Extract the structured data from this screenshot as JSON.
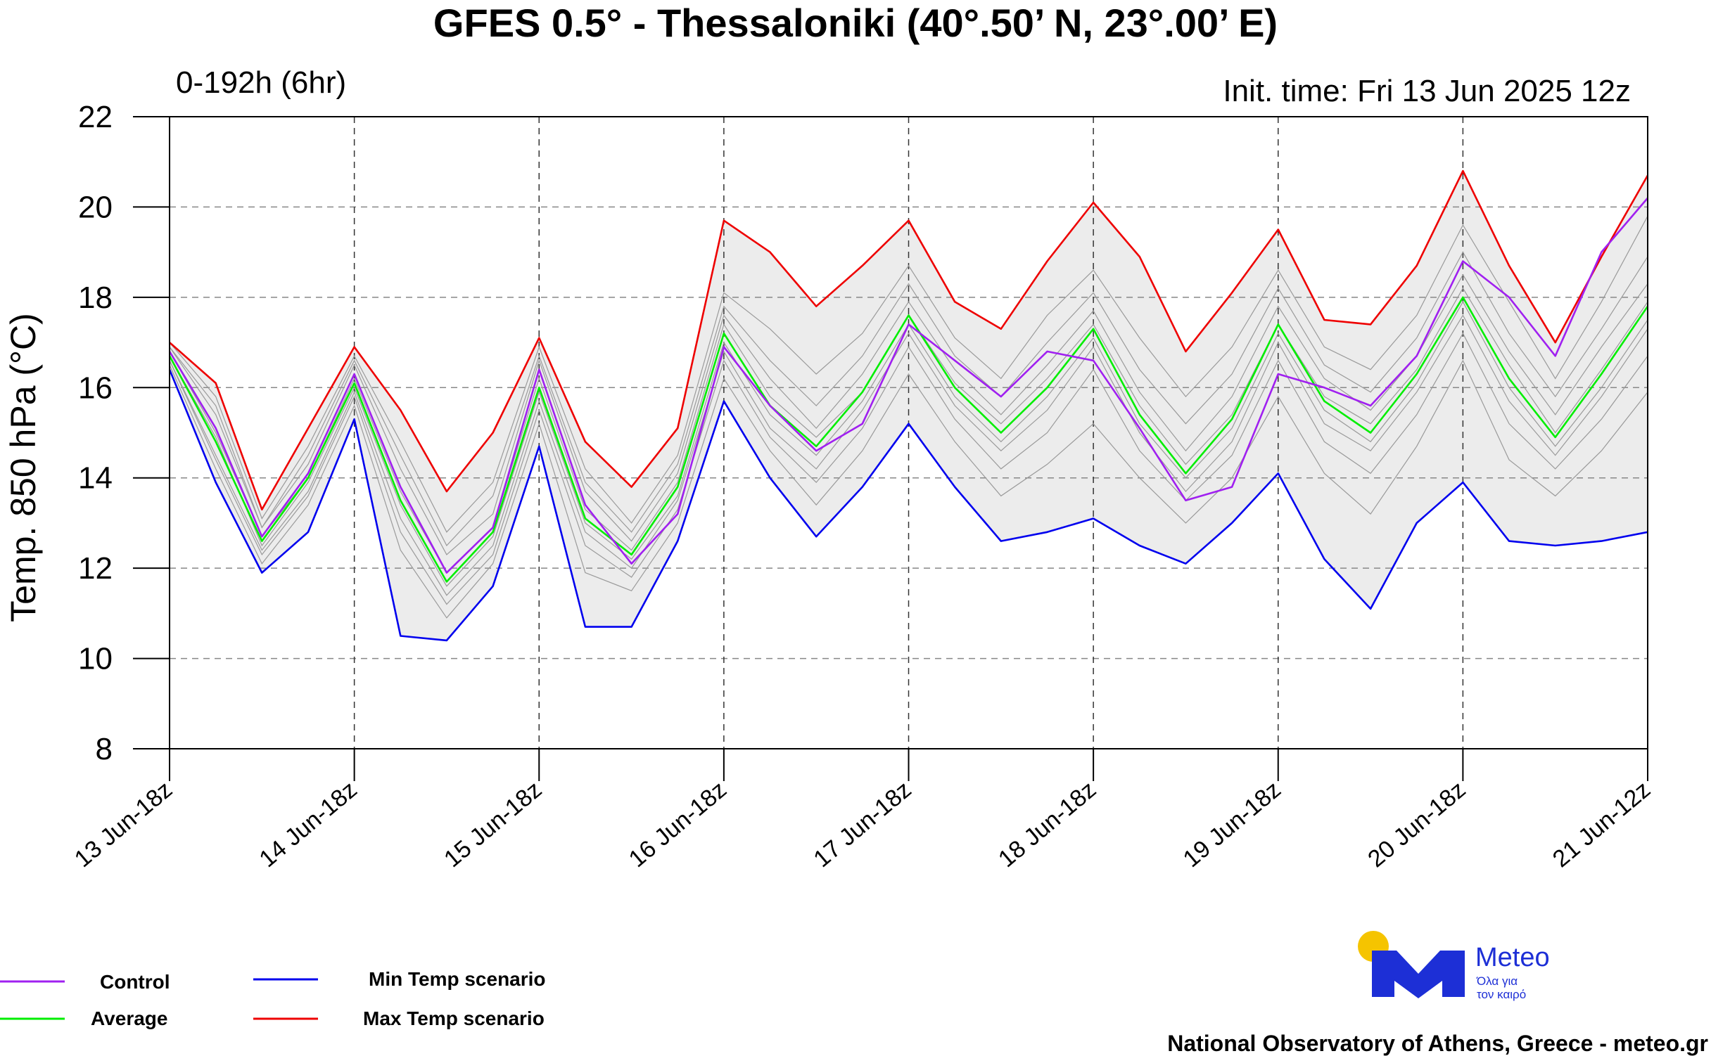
{
  "chart_data": {
    "type": "line",
    "title": "GFES 0.5° - Thessaloniki (40°.50’ N, 23°.00’ E)",
    "subtitle_left": "0-192h (6hr)",
    "subtitle_right": "Init. time: Fri 13 Jun 2025 12z",
    "ylabel": "Temp. 850 hPa (°C)",
    "ylim": [
      8,
      22
    ],
    "yticks": [
      8,
      10,
      12,
      14,
      16,
      18,
      20,
      22
    ],
    "grid": true,
    "x": [
      0,
      1,
      2,
      3,
      4,
      5,
      6,
      7,
      8,
      9,
      10,
      11,
      12,
      13,
      14,
      15,
      16,
      17,
      18,
      19,
      20,
      21,
      22,
      23,
      24,
      25,
      26,
      27,
      28,
      29,
      30,
      31,
      32
    ],
    "x_tick_positions": [
      0,
      4,
      8,
      12,
      16,
      20,
      24,
      28,
      32
    ],
    "x_tick_labels": [
      "13 Jun-18z",
      "14 Jun-18z",
      "15 Jun-18z",
      "16 Jun-18z",
      "17 Jun-18z",
      "18 Jun-18z",
      "19 Jun-18z",
      "20 Jun-18z",
      "21 Jun-12z"
    ],
    "series": [
      {
        "name": "Control",
        "color": "#a020f0",
        "values": [
          16.8,
          15.1,
          12.7,
          14.1,
          16.3,
          13.8,
          11.9,
          12.9,
          16.4,
          13.4,
          12.1,
          13.2,
          16.9,
          15.6,
          14.6,
          15.2,
          17.4,
          16.6,
          15.8,
          16.8,
          16.6,
          15.1,
          13.5,
          13.8,
          16.3,
          16.0,
          15.6,
          16.7,
          18.8,
          18.0,
          16.7,
          19.0,
          20.2
        ]
      },
      {
        "name": "Average",
        "color": "#00ee00",
        "values": [
          16.7,
          14.8,
          12.6,
          14.0,
          16.1,
          13.5,
          11.7,
          12.8,
          16.0,
          13.1,
          12.3,
          13.8,
          17.2,
          15.6,
          14.7,
          15.9,
          17.6,
          16.0,
          15.0,
          16.0,
          17.3,
          15.4,
          14.1,
          15.3,
          17.4,
          15.7,
          15.0,
          16.3,
          18.0,
          16.2,
          14.9,
          16.3,
          17.8
        ]
      },
      {
        "name": "Min Temp scenario",
        "color": "#0000ee",
        "values": [
          16.4,
          13.9,
          11.9,
          12.8,
          15.3,
          10.5,
          10.4,
          11.6,
          14.7,
          10.7,
          10.7,
          12.6,
          15.7,
          14.0,
          12.7,
          13.8,
          15.2,
          13.8,
          12.6,
          12.8,
          13.1,
          12.5,
          12.1,
          13.0,
          14.1,
          12.2,
          11.1,
          13.0,
          13.9,
          12.6,
          12.5,
          12.6,
          12.8
        ]
      },
      {
        "name": "Max Temp scenario",
        "color": "#ee0000",
        "values": [
          17.0,
          16.1,
          13.3,
          15.1,
          16.9,
          15.5,
          13.7,
          15.0,
          17.1,
          14.8,
          13.8,
          15.1,
          19.7,
          19.0,
          17.8,
          18.7,
          19.7,
          17.9,
          17.3,
          18.8,
          20.1,
          18.9,
          16.8,
          18.1,
          19.5,
          17.5,
          17.4,
          18.7,
          20.8,
          18.7,
          17.0,
          18.9,
          20.7
        ]
      }
    ],
    "ensemble_members": [
      [
        16.9,
        15.4,
        12.9,
        14.3,
        16.5,
        14.2,
        12.3,
        13.2,
        16.6,
        13.7,
        12.6,
        14.1,
        17.6,
        16.2,
        15.1,
        16.3,
        17.9,
        16.4,
        15.4,
        16.5,
        17.7,
        15.9,
        14.6,
        15.8,
        17.8,
        16.2,
        15.5,
        16.7,
        18.5,
        16.8,
        15.4,
        16.9,
        18.3
      ],
      [
        16.6,
        14.5,
        12.4,
        13.7,
        15.9,
        13.1,
        11.4,
        12.5,
        15.7,
        12.8,
        12.0,
        13.5,
        16.8,
        15.1,
        14.2,
        15.5,
        17.2,
        15.6,
        14.6,
        15.5,
        16.9,
        15.0,
        13.7,
        14.8,
        17.0,
        15.2,
        14.6,
        15.9,
        17.6,
        15.7,
        14.5,
        15.8,
        17.3
      ],
      [
        17.0,
        15.8,
        13.1,
        14.7,
        16.7,
        14.8,
        12.8,
        13.9,
        16.9,
        14.2,
        13.0,
        14.5,
        18.1,
        17.3,
        16.3,
        17.2,
        18.7,
        17.1,
        16.2,
        17.6,
        18.6,
        17.1,
        15.8,
        16.9,
        18.6,
        16.9,
        16.4,
        17.6,
        19.6,
        17.9,
        16.2,
        17.9,
        19.8
      ],
      [
        16.5,
        14.2,
        12.1,
        13.4,
        15.6,
        12.4,
        10.9,
        12.1,
        15.2,
        11.9,
        11.5,
        13.0,
        16.2,
        14.6,
        13.4,
        14.6,
        16.3,
        14.8,
        13.6,
        14.3,
        15.2,
        14.0,
        13.0,
        14.0,
        15.8,
        14.1,
        13.2,
        14.7,
        16.6,
        14.4,
        13.6,
        14.6,
        15.9
      ],
      [
        16.8,
        15.0,
        12.7,
        14.0,
        16.2,
        13.7,
        11.9,
        12.9,
        16.2,
        13.3,
        12.4,
        13.9,
        17.4,
        15.8,
        14.9,
        15.9,
        17.6,
        16.1,
        15.2,
        16.2,
        17.4,
        15.6,
        14.3,
        15.4,
        17.4,
        15.8,
        15.2,
        16.4,
        18.2,
        16.5,
        15.0,
        16.4,
        17.9
      ],
      [
        16.7,
        14.9,
        12.5,
        13.9,
        16.0,
        13.4,
        11.6,
        12.7,
        15.9,
        13.0,
        12.2,
        13.6,
        17.0,
        15.4,
        14.5,
        15.7,
        17.4,
        15.8,
        14.8,
        15.8,
        17.1,
        15.2,
        14.0,
        15.1,
        17.2,
        15.5,
        14.8,
        16.1,
        17.9,
        16.0,
        14.7,
        16.0,
        17.5
      ],
      [
        16.9,
        15.6,
        12.9,
        14.5,
        16.6,
        14.5,
        12.5,
        13.6,
        16.7,
        13.9,
        12.8,
        14.3,
        17.8,
        16.6,
        15.6,
        16.7,
        18.3,
        16.7,
        15.8,
        17.0,
        18.1,
        16.4,
        15.2,
        16.3,
        18.2,
        16.5,
        15.9,
        17.1,
        19.0,
        17.2,
        15.8,
        17.3,
        18.9
      ],
      [
        16.6,
        14.4,
        12.3,
        13.6,
        15.8,
        12.8,
        11.2,
        12.3,
        15.5,
        12.5,
        11.8,
        13.3,
        16.6,
        14.9,
        13.9,
        15.1,
        16.9,
        15.3,
        14.2,
        15.0,
        16.4,
        14.6,
        13.5,
        14.5,
        16.6,
        14.8,
        14.1,
        15.4,
        17.2,
        15.2,
        14.2,
        15.3,
        16.7
      ]
    ]
  },
  "legend": {
    "control": "Control",
    "average": "Average",
    "min": "Min Temp scenario",
    "max": "Max Temp scenario"
  },
  "logo": {
    "name": "Meteo",
    "tagline_1": "Όλα για",
    "tagline_2": "τον καιρό",
    "brand_color": "#1d2fd6",
    "sun_color": "#f5c400"
  },
  "footer": "National Observatory of Athens, Greece - meteo.gr",
  "colors": {
    "envelope_fill": "#ececec",
    "member_line": "#9a9a9a",
    "grid": "#888888"
  }
}
